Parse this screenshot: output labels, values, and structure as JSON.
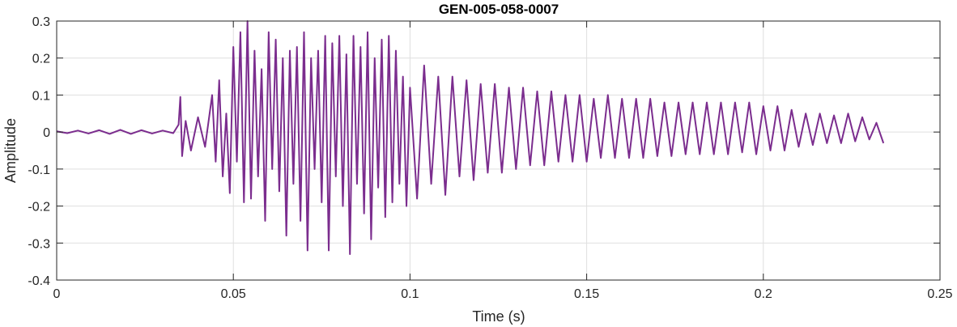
{
  "chart_data": {
    "type": "line",
    "title": "GEN-005-058-0007",
    "xlabel": "Time (s)",
    "ylabel": "Amplitude",
    "xlim": [
      0,
      0.25
    ],
    "ylim": [
      -0.4,
      0.3
    ],
    "xticks": [
      0,
      0.05,
      0.1,
      0.15,
      0.2,
      0.25
    ],
    "xtick_labels": [
      "0",
      "0.05",
      "0.1",
      "0.15",
      "0.2",
      "0.25"
    ],
    "yticks": [
      -0.4,
      -0.3,
      -0.2,
      -0.1,
      0,
      0.1,
      0.2,
      0.3
    ],
    "ytick_labels": [
      "-0.4",
      "-0.3",
      "-0.2",
      "-0.1",
      "0",
      "0.1",
      "0.2",
      "0.3"
    ],
    "grid": true,
    "series": [
      {
        "color": "#7b2d8e",
        "x": [
          0,
          0.003,
          0.006,
          0.009,
          0.012,
          0.015,
          0.018,
          0.021,
          0.024,
          0.027,
          0.03,
          0.033,
          0.0345,
          0.035,
          0.0355,
          0.0365,
          0.038,
          0.04,
          0.042,
          0.044,
          0.045,
          0.046,
          0.047,
          0.048,
          0.049,
          0.05,
          0.051,
          0.052,
          0.053,
          0.054,
          0.055,
          0.056,
          0.057,
          0.058,
          0.059,
          0.06,
          0.061,
          0.062,
          0.063,
          0.064,
          0.065,
          0.066,
          0.067,
          0.068,
          0.069,
          0.07,
          0.071,
          0.072,
          0.073,
          0.074,
          0.075,
          0.076,
          0.077,
          0.078,
          0.079,
          0.08,
          0.081,
          0.082,
          0.083,
          0.084,
          0.085,
          0.086,
          0.087,
          0.088,
          0.089,
          0.09,
          0.091,
          0.092,
          0.093,
          0.094,
          0.095,
          0.096,
          0.097,
          0.098,
          0.099,
          0.1,
          0.102,
          0.104,
          0.106,
          0.108,
          0.11,
          0.112,
          0.114,
          0.116,
          0.118,
          0.12,
          0.122,
          0.124,
          0.126,
          0.128,
          0.13,
          0.132,
          0.134,
          0.136,
          0.138,
          0.14,
          0.142,
          0.144,
          0.146,
          0.148,
          0.15,
          0.152,
          0.154,
          0.156,
          0.158,
          0.16,
          0.162,
          0.164,
          0.166,
          0.168,
          0.17,
          0.172,
          0.174,
          0.176,
          0.178,
          0.18,
          0.182,
          0.184,
          0.186,
          0.188,
          0.19,
          0.192,
          0.194,
          0.196,
          0.198,
          0.2,
          0.202,
          0.204,
          0.206,
          0.208,
          0.21,
          0.212,
          0.214,
          0.216,
          0.218,
          0.22,
          0.222,
          0.224,
          0.226,
          0.228,
          0.23,
          0.232,
          0.234
        ],
        "y": [
          0.002,
          -0.003,
          0.004,
          -0.004,
          0.005,
          -0.005,
          0.006,
          -0.005,
          0.005,
          -0.004,
          0.004,
          -0.003,
          0.02,
          0.095,
          -0.065,
          0.03,
          -0.05,
          0.04,
          -0.04,
          0.1,
          -0.08,
          0.14,
          -0.12,
          0.05,
          -0.165,
          0.23,
          -0.08,
          0.27,
          -0.19,
          0.3,
          -0.18,
          0.22,
          -0.12,
          0.17,
          -0.24,
          0.27,
          -0.1,
          0.25,
          -0.16,
          0.2,
          -0.28,
          0.22,
          -0.14,
          0.23,
          -0.24,
          0.27,
          -0.32,
          0.2,
          -0.1,
          0.22,
          -0.19,
          0.26,
          -0.32,
          0.24,
          -0.12,
          0.26,
          -0.2,
          0.21,
          -0.33,
          0.26,
          -0.14,
          0.23,
          -0.22,
          0.27,
          -0.29,
          0.2,
          -0.15,
          0.25,
          -0.23,
          0.26,
          -0.19,
          0.22,
          -0.14,
          0.15,
          -0.2,
          0.12,
          -0.18,
          0.18,
          -0.14,
          0.15,
          -0.17,
          0.15,
          -0.12,
          0.14,
          -0.13,
          0.13,
          -0.11,
          0.13,
          -0.11,
          0.12,
          -0.1,
          0.12,
          -0.09,
          0.11,
          -0.09,
          0.11,
          -0.08,
          0.1,
          -0.08,
          0.1,
          -0.08,
          0.09,
          -0.07,
          0.1,
          -0.07,
          0.09,
          -0.07,
          0.09,
          -0.07,
          0.09,
          -0.065,
          0.08,
          -0.065,
          0.08,
          -0.06,
          0.08,
          -0.06,
          0.08,
          -0.06,
          0.08,
          -0.06,
          0.08,
          -0.055,
          0.08,
          -0.06,
          0.07,
          -0.05,
          0.07,
          -0.05,
          0.06,
          -0.04,
          0.05,
          -0.035,
          0.05,
          -0.03,
          0.045,
          -0.03,
          0.05,
          -0.025,
          0.04,
          -0.02,
          0.025,
          -0.03
        ]
      }
    ]
  }
}
